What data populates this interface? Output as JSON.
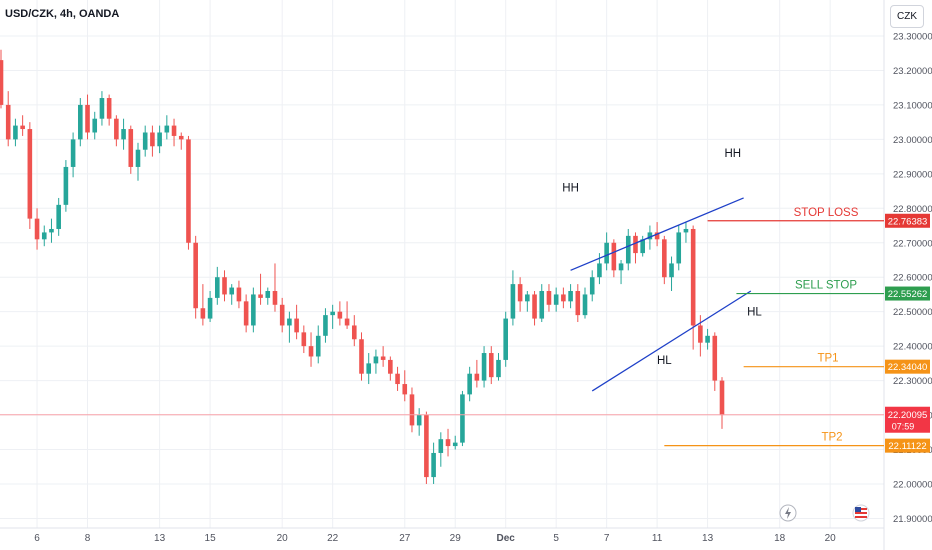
{
  "header": {
    "symbol": "USD/CZK, 4h, OANDA",
    "currency_button": "CZK"
  },
  "colors": {
    "up": "#26a69a",
    "down": "#ef5350",
    "channel": "#1e40c8",
    "stop_loss": "#e53935",
    "sell_stop": "#2e9e4f",
    "tp": "#f59317",
    "current": "#f23645",
    "grid": "#eef0f4",
    "text": "#131722",
    "axis_text": "#50535e"
  },
  "chart_data": {
    "type": "candlestick",
    "instrument": "USD/CZK",
    "timeframe": "4h",
    "source": "OANDA",
    "ylim": [
      21.88,
      23.34
    ],
    "y_ticks": [
      "23.30000",
      "23.20000",
      "23.10000",
      "23.00000",
      "22.90000",
      "22.80000",
      "22.70000",
      "22.60000",
      "22.50000",
      "22.40000",
      "22.30000",
      "22.20000",
      "22.10000",
      "22.00000",
      "21.90000"
    ],
    "x_ticks": [
      {
        "label": "6",
        "i": 5
      },
      {
        "label": "8",
        "i": 12
      },
      {
        "label": "13",
        "i": 22
      },
      {
        "label": "15",
        "i": 29
      },
      {
        "label": "20",
        "i": 39
      },
      {
        "label": "22",
        "i": 46
      },
      {
        "label": "27",
        "i": 56
      },
      {
        "label": "29",
        "i": 63
      },
      {
        "label": "Dec",
        "i": 70
      },
      {
        "label": "5",
        "i": 77
      },
      {
        "label": "7",
        "i": 84
      },
      {
        "label": "11",
        "i": 91
      },
      {
        "label": "13",
        "i": 98
      },
      {
        "label": "18",
        "i": 108
      },
      {
        "label": "20",
        "i": 115
      }
    ],
    "candles": [
      [
        23.23,
        23.26,
        23.09,
        23.1
      ],
      [
        23.1,
        23.14,
        22.98,
        23.0
      ],
      [
        23.0,
        23.06,
        22.98,
        23.04
      ],
      [
        23.04,
        23.07,
        23.01,
        23.03
      ],
      [
        23.03,
        23.05,
        22.74,
        22.77
      ],
      [
        22.77,
        22.8,
        22.68,
        22.71
      ],
      [
        22.71,
        22.75,
        22.69,
        22.73
      ],
      [
        22.73,
        22.77,
        22.7,
        22.74
      ],
      [
        22.74,
        22.83,
        22.72,
        22.81
      ],
      [
        22.81,
        22.94,
        22.79,
        22.92
      ],
      [
        22.92,
        23.02,
        22.89,
        23.0
      ],
      [
        23.0,
        23.12,
        22.98,
        23.1
      ],
      [
        23.1,
        23.13,
        23.0,
        23.02
      ],
      [
        23.02,
        23.08,
        23.0,
        23.06
      ],
      [
        23.06,
        23.14,
        23.04,
        23.12
      ],
      [
        23.12,
        23.13,
        23.04,
        23.06
      ],
      [
        23.06,
        23.07,
        22.98,
        23.0
      ],
      [
        23.0,
        23.06,
        22.97,
        23.03
      ],
      [
        23.03,
        23.04,
        22.9,
        22.92
      ],
      [
        22.92,
        22.99,
        22.88,
        22.97
      ],
      [
        22.97,
        23.04,
        22.95,
        23.02
      ],
      [
        23.02,
        23.04,
        22.95,
        22.98
      ],
      [
        22.98,
        23.04,
        22.96,
        23.02
      ],
      [
        23.02,
        23.07,
        23.0,
        23.04
      ],
      [
        23.04,
        23.06,
        22.98,
        23.01
      ],
      [
        23.01,
        23.02,
        22.97,
        23.0
      ],
      [
        23.0,
        23.01,
        22.68,
        22.7
      ],
      [
        22.7,
        22.72,
        22.48,
        22.51
      ],
      [
        22.51,
        22.58,
        22.46,
        22.48
      ],
      [
        22.48,
        22.56,
        22.47,
        22.54
      ],
      [
        22.54,
        22.63,
        22.52,
        22.6
      ],
      [
        22.6,
        22.62,
        22.53,
        22.55
      ],
      [
        22.55,
        22.58,
        22.52,
        22.57
      ],
      [
        22.57,
        22.59,
        22.51,
        22.53
      ],
      [
        22.53,
        22.55,
        22.44,
        22.46
      ],
      [
        22.46,
        22.57,
        22.44,
        22.55
      ],
      [
        22.55,
        22.61,
        22.52,
        22.54
      ],
      [
        22.54,
        22.57,
        22.52,
        22.56
      ],
      [
        22.56,
        22.64,
        22.5,
        22.52
      ],
      [
        22.52,
        22.54,
        22.44,
        22.46
      ],
      [
        22.46,
        22.5,
        22.41,
        22.48
      ],
      [
        22.48,
        22.52,
        22.42,
        22.44
      ],
      [
        22.44,
        22.46,
        22.38,
        22.4
      ],
      [
        22.4,
        22.44,
        22.34,
        22.37
      ],
      [
        22.37,
        22.46,
        22.35,
        22.43
      ],
      [
        22.43,
        22.51,
        22.41,
        22.49
      ],
      [
        22.49,
        22.52,
        22.45,
        22.5
      ],
      [
        22.5,
        22.53,
        22.46,
        22.48
      ],
      [
        22.48,
        22.53,
        22.45,
        22.46
      ],
      [
        22.46,
        22.49,
        22.4,
        22.42
      ],
      [
        22.42,
        22.44,
        22.3,
        22.32
      ],
      [
        22.32,
        22.38,
        22.29,
        22.35
      ],
      [
        22.35,
        22.39,
        22.32,
        22.37
      ],
      [
        22.37,
        22.4,
        22.34,
        22.36
      ],
      [
        22.36,
        22.37,
        22.3,
        22.32
      ],
      [
        22.32,
        22.34,
        22.27,
        22.29
      ],
      [
        22.29,
        22.33,
        22.24,
        22.26
      ],
      [
        22.26,
        22.28,
        22.15,
        22.17
      ],
      [
        22.17,
        22.22,
        22.14,
        22.2
      ],
      [
        22.2,
        22.21,
        22.0,
        22.02
      ],
      [
        22.02,
        22.12,
        22.0,
        22.09
      ],
      [
        22.09,
        22.15,
        22.05,
        22.13
      ],
      [
        22.13,
        22.16,
        22.08,
        22.11
      ],
      [
        22.11,
        22.14,
        22.1,
        22.12
      ],
      [
        22.12,
        22.27,
        22.11,
        22.26
      ],
      [
        22.26,
        22.34,
        22.24,
        22.32
      ],
      [
        22.32,
        22.36,
        22.28,
        22.3
      ],
      [
        22.3,
        22.4,
        22.28,
        22.38
      ],
      [
        22.38,
        22.4,
        22.29,
        22.31
      ],
      [
        22.31,
        22.38,
        22.3,
        22.36
      ],
      [
        22.36,
        22.5,
        22.34,
        22.48
      ],
      [
        22.48,
        22.62,
        22.46,
        22.58
      ],
      [
        22.58,
        22.6,
        22.5,
        22.53
      ],
      [
        22.53,
        22.56,
        22.5,
        22.55
      ],
      [
        22.55,
        22.56,
        22.46,
        22.48
      ],
      [
        22.48,
        22.58,
        22.47,
        22.56
      ],
      [
        22.56,
        22.58,
        22.5,
        22.52
      ],
      [
        22.52,
        22.57,
        22.5,
        22.55
      ],
      [
        22.55,
        22.57,
        22.51,
        22.53
      ],
      [
        22.53,
        22.58,
        22.51,
        22.56
      ],
      [
        22.56,
        22.58,
        22.47,
        22.49
      ],
      [
        22.49,
        22.57,
        22.48,
        22.55
      ],
      [
        22.55,
        22.62,
        22.53,
        22.6
      ],
      [
        22.6,
        22.67,
        22.58,
        22.64
      ],
      [
        22.64,
        22.73,
        22.62,
        22.7
      ],
      [
        22.7,
        22.71,
        22.6,
        22.62
      ],
      [
        22.62,
        22.65,
        22.58,
        22.64
      ],
      [
        22.64,
        22.74,
        22.62,
        22.72
      ],
      [
        22.72,
        22.73,
        22.64,
        22.67
      ],
      [
        22.67,
        22.72,
        22.66,
        22.71
      ],
      [
        22.71,
        22.75,
        22.68,
        22.73
      ],
      [
        22.73,
        22.76,
        22.69,
        22.71
      ],
      [
        22.71,
        22.72,
        22.58,
        22.6
      ],
      [
        22.6,
        22.66,
        22.56,
        22.64
      ],
      [
        22.64,
        22.75,
        22.62,
        22.73
      ],
      [
        22.73,
        22.76,
        22.7,
        22.74
      ],
      [
        22.74,
        22.75,
        22.39,
        22.46
      ],
      [
        22.46,
        22.49,
        22.37,
        22.41
      ],
      [
        22.41,
        22.45,
        22.39,
        22.43
      ],
      [
        22.43,
        22.44,
        22.27,
        22.3
      ],
      [
        22.3,
        22.31,
        22.16,
        22.2
      ]
    ],
    "current_price": "22.20095",
    "countdown": "07:59",
    "levels": [
      {
        "name": "STOP LOSS",
        "price": 22.76383,
        "price_label": "22.76383"
      },
      {
        "name": "SELL STOP",
        "price": 22.55262,
        "price_label": "22.55262"
      },
      {
        "name": "TP1",
        "price": 22.3404,
        "price_label": "22.34040"
      },
      {
        "name": "TP2",
        "price": 22.11122,
        "price_label": "22.11122"
      }
    ],
    "annotations": [
      "HH",
      "HH",
      "HL",
      "HL"
    ],
    "channel_lines": [
      {
        "name": "upper",
        "from": {
          "i": 79,
          "price": 22.62
        },
        "to": {
          "i": 103,
          "price": 22.83
        }
      },
      {
        "name": "lower",
        "from": {
          "i": 82,
          "price": 22.27
        },
        "to": {
          "i": 104,
          "price": 22.56
        }
      }
    ]
  }
}
